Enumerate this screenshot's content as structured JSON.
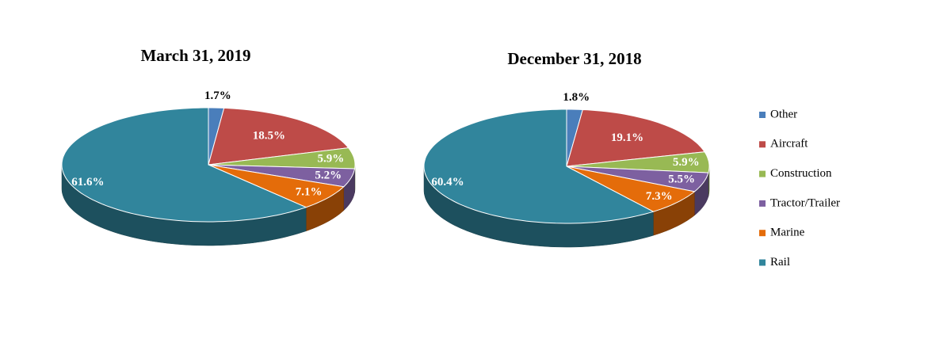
{
  "chart_data": [
    {
      "type": "pie",
      "title": "March 31, 2019",
      "categories": [
        "Other",
        "Aircraft",
        "Construction",
        "Tractor/Trailer",
        "Marine",
        "Rail"
      ],
      "values": [
        1.7,
        18.5,
        5.9,
        5.2,
        7.1,
        61.6
      ],
      "value_labels": [
        "1.7%",
        "18.5%",
        "5.9%",
        "5.2%",
        "7.1%",
        "61.6%"
      ],
      "colors": [
        "#4a7ebb",
        "#be4b48",
        "#98b954",
        "#7d60a0",
        "#e46c0a",
        "#31859c"
      ]
    },
    {
      "type": "pie",
      "title": "December 31, 2018",
      "categories": [
        "Other",
        "Aircraft",
        "Construction",
        "Tractor/Trailer",
        "Marine",
        "Rail"
      ],
      "values": [
        1.8,
        19.1,
        5.9,
        5.5,
        7.3,
        60.4
      ],
      "value_labels": [
        "1.8%",
        "19.1%",
        "5.9%",
        "5.5%",
        "7.3%",
        "60.4%"
      ],
      "colors": [
        "#4a7ebb",
        "#be4b48",
        "#98b954",
        "#7d60a0",
        "#e46c0a",
        "#31859c"
      ],
      "legend": "right"
    }
  ]
}
